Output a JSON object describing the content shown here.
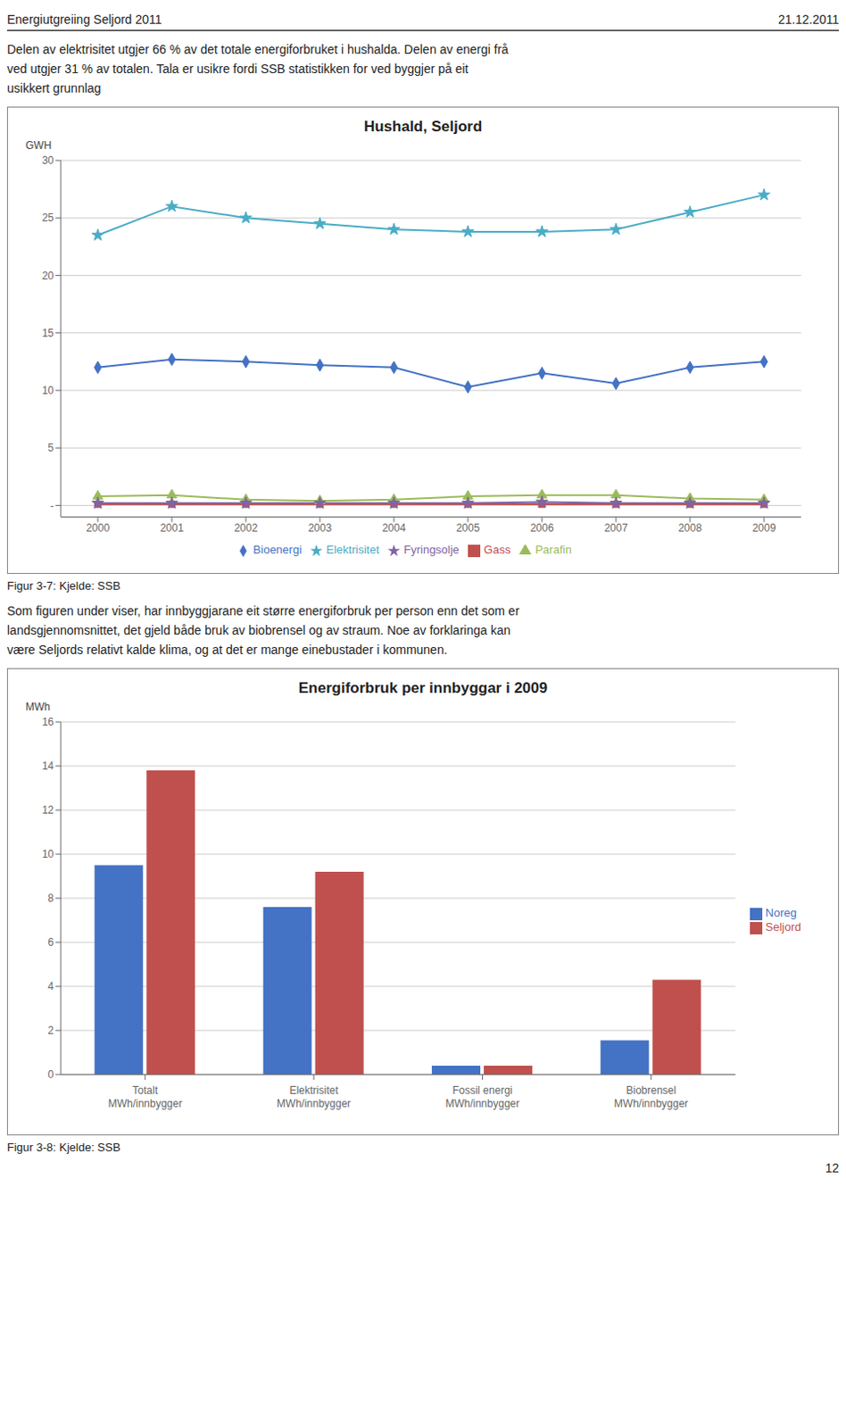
{
  "chart_data": [
    {
      "type": "line",
      "title": "Hushald, Seljord",
      "y_label": "GWH",
      "annotations": [
        "Energiutgreiing Seljord 2011",
        "21.12.2011",
        "Delen av elektrisitet utgjer 66 % av det totale energiforbruket i hushalda. Delen av energi frå",
        "ved utgjer 31 % av totalen. Tala er usikre fordi SSB statistikken for ved byggjer på eit",
        "usikkert grunnlag",
        "Figur 3-7: Kjelde: SSB"
      ],
      "x": [
        2000,
        2001,
        2002,
        2003,
        2004,
        2005,
        2006,
        2007,
        2008,
        2009
      ],
      "xlim": [
        1999.5,
        2009.5
      ],
      "xticks": [
        2000,
        2001,
        2002,
        2003,
        2004,
        2005,
        2006,
        2007,
        2008,
        2009
      ],
      "ylim": [
        -1,
        30
      ],
      "yticks": [
        {
          "value": 0,
          "label": "-"
        },
        5,
        10,
        15,
        20,
        25,
        30
      ],
      "grid": true,
      "legend": "bottom",
      "series": [
        {
          "name": "Bioenergi",
          "color": "#4472c4",
          "marker": "diamond",
          "values": [
            12.0,
            12.7,
            12.5,
            12.2,
            12.0,
            10.3,
            11.5,
            10.6,
            12.0,
            12.5
          ]
        },
        {
          "name": "Gass",
          "color": "#c0504d",
          "marker": "square",
          "values": [
            0.1,
            0.1,
            0.1,
            0.1,
            0.1,
            0.1,
            0.1,
            0.1,
            0.1,
            0.1
          ]
        },
        {
          "name": "Parafin",
          "color": "#9bbb59",
          "marker": "triangle",
          "values": [
            0.8,
            0.9,
            0.5,
            0.4,
            0.5,
            0.8,
            0.9,
            0.9,
            0.6,
            0.5
          ]
        },
        {
          "name": "Fyringsolje",
          "color": "#8064a2",
          "marker": "star",
          "values": [
            0.2,
            0.2,
            0.2,
            0.2,
            0.2,
            0.2,
            0.3,
            0.2,
            0.2,
            0.2
          ]
        },
        {
          "name": "Elektrisitet",
          "color": "#4bacc6",
          "marker": "star",
          "values": [
            23.5,
            26.0,
            25.0,
            24.5,
            24.0,
            23.8,
            23.8,
            24.0,
            25.5,
            27.0
          ]
        }
      ]
    },
    {
      "type": "bar",
      "title": "Energiforbruk per innbyggar i 2009",
      "y_label": "MWh",
      "annotations": [
        "Som figuren under viser, har innbyggjarane eit større energiforbruk per person enn det som er",
        "landsgjennomsnittet, det gjeld både bruk av biobrensel og av straum. Noe av forklaringa kan",
        "være Seljords relativt kalde klima, og at det er mange einebustader i kommunen.",
        "Figur 3-8: Kjelde: SSB",
        "12"
      ],
      "categories": [
        "Totalt\nMWh/innbygger",
        "Elektrisitet\nMWh/innbygger",
        "Fossil energi\nMWh/innbygger",
        "Biobrensel\nMWh/innbygger"
      ],
      "ylim": [
        0,
        16
      ],
      "yticks": [
        0,
        2,
        4,
        6,
        8,
        10,
        12,
        14,
        16
      ],
      "grid": true,
      "legend": "right",
      "series": [
        {
          "name": "Noreg",
          "color": "#4472c4",
          "values": [
            9.5,
            7.6,
            0.4,
            1.55
          ]
        },
        {
          "name": "Seljord",
          "color": "#c0504d",
          "values": [
            13.8,
            9.2,
            0.4,
            4.3
          ]
        }
      ]
    }
  ]
}
